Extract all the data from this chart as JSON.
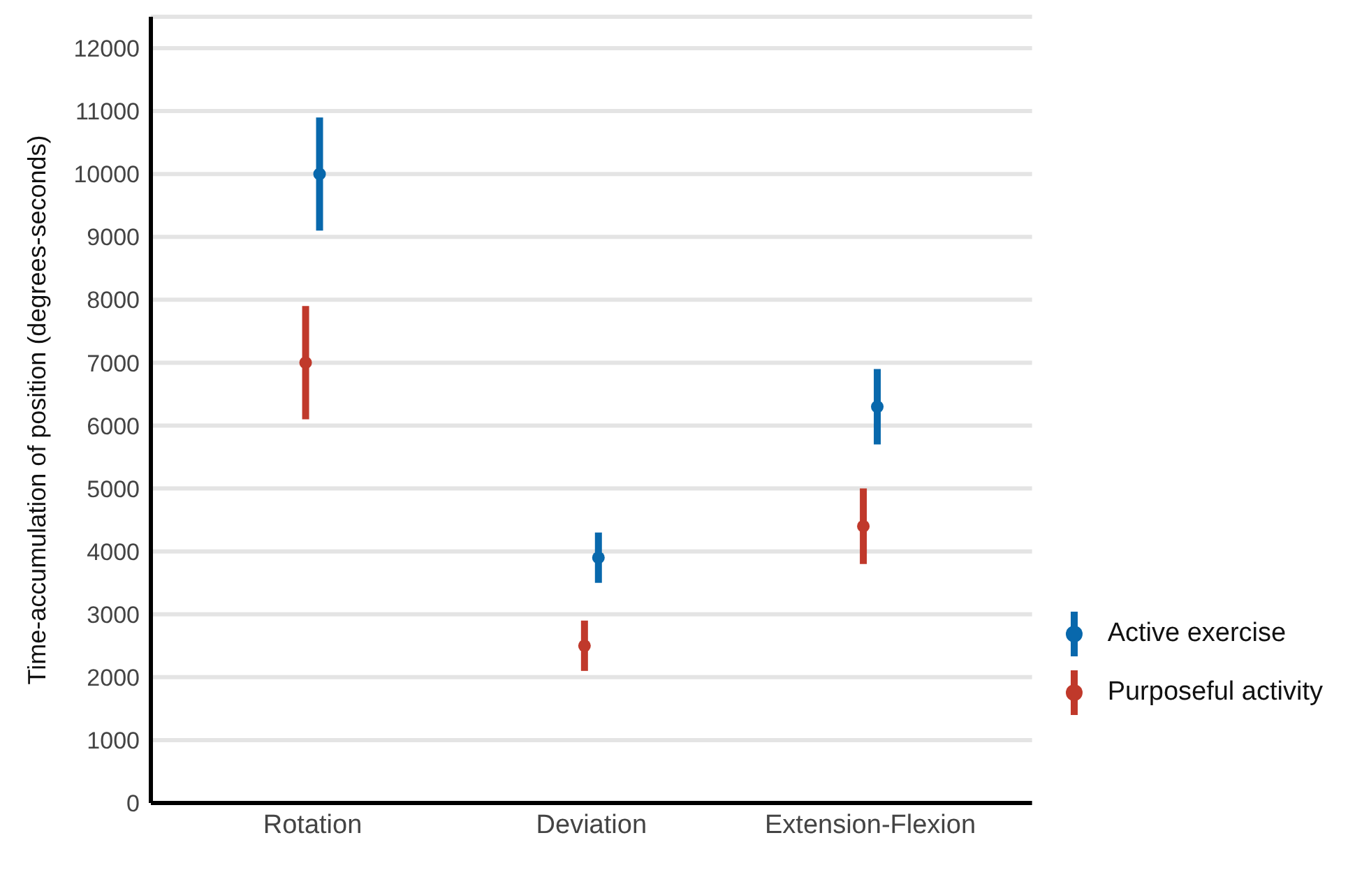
{
  "chart_data": {
    "type": "scatter",
    "ylabel": "Time-accumulation of position (degrees-seconds)",
    "categories": [
      "Rotation",
      "Deviation",
      "Extension-Flexion"
    ],
    "series": [
      {
        "name": "Purposeful activity",
        "color": "#c0392b",
        "values": [
          7000,
          2500,
          4400
        ],
        "errors": [
          900,
          400,
          600
        ]
      },
      {
        "name": "Active exercise",
        "color": "#0868ac",
        "values": [
          10000,
          3900,
          6300
        ],
        "errors": [
          900,
          400,
          600
        ]
      }
    ],
    "ylim": [
      0,
      12500
    ],
    "yticks": [
      0,
      1000,
      2000,
      3000,
      4000,
      5000,
      6000,
      7000,
      8000,
      9000,
      10000,
      11000,
      12000
    ],
    "grid": "y",
    "legend": "right",
    "marker": "circle"
  }
}
